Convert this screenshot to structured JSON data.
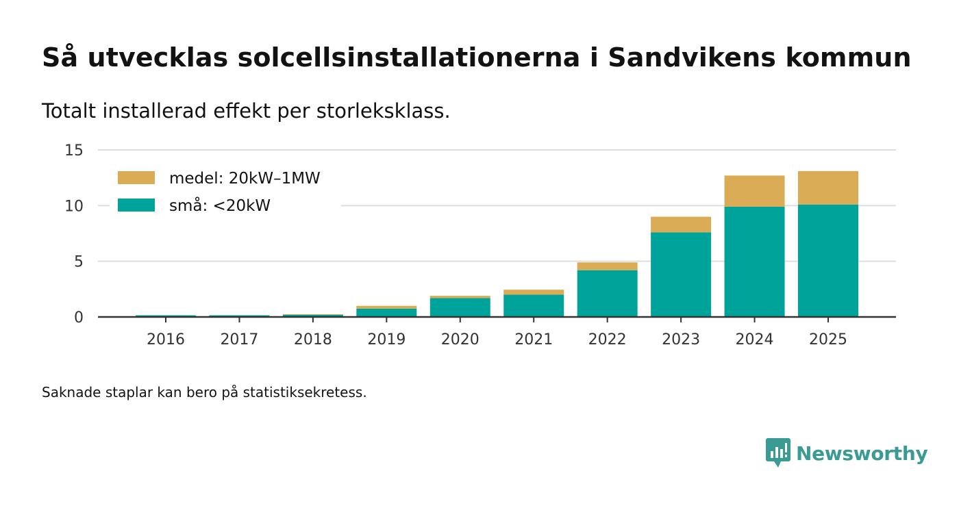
{
  "title": "Så utvecklas solcellsinstallationerna i Sandvikens kommun",
  "subtitle": "Totalt installerad effekt per storleksklass.",
  "note": "Saknade staplar kan bero på statistiksekretess.",
  "logo_text": "Newsworthy",
  "colors": {
    "small": "#00a39a",
    "medium": "#dbac56",
    "grid": "#dddddd",
    "axis": "#333333",
    "logo": "#3a9a94"
  },
  "chart_data": {
    "type": "bar",
    "stacked": true,
    "categories": [
      "2016",
      "2017",
      "2018",
      "2019",
      "2020",
      "2021",
      "2022",
      "2023",
      "2024",
      "2025"
    ],
    "series": [
      {
        "name": "små: <20kW",
        "values": [
          0.15,
          0.15,
          0.2,
          0.75,
          1.7,
          2.0,
          4.2,
          7.6,
          9.9,
          10.1
        ]
      },
      {
        "name": "medel: 20kW–1MW",
        "values": [
          0.0,
          0.0,
          0.05,
          0.25,
          0.2,
          0.45,
          0.7,
          1.4,
          2.8,
          3.0
        ]
      }
    ],
    "legend": [
      "medel: 20kW–1MW",
      "små: <20kW"
    ],
    "yticks": [
      0,
      5,
      10,
      15
    ],
    "ylim": [
      0,
      15
    ],
    "title": "Så utvecklas solcellsinstallationerna i Sandvikens kommun",
    "xlabel": "",
    "ylabel": "",
    "grid": true,
    "legend_position": "top-left"
  }
}
